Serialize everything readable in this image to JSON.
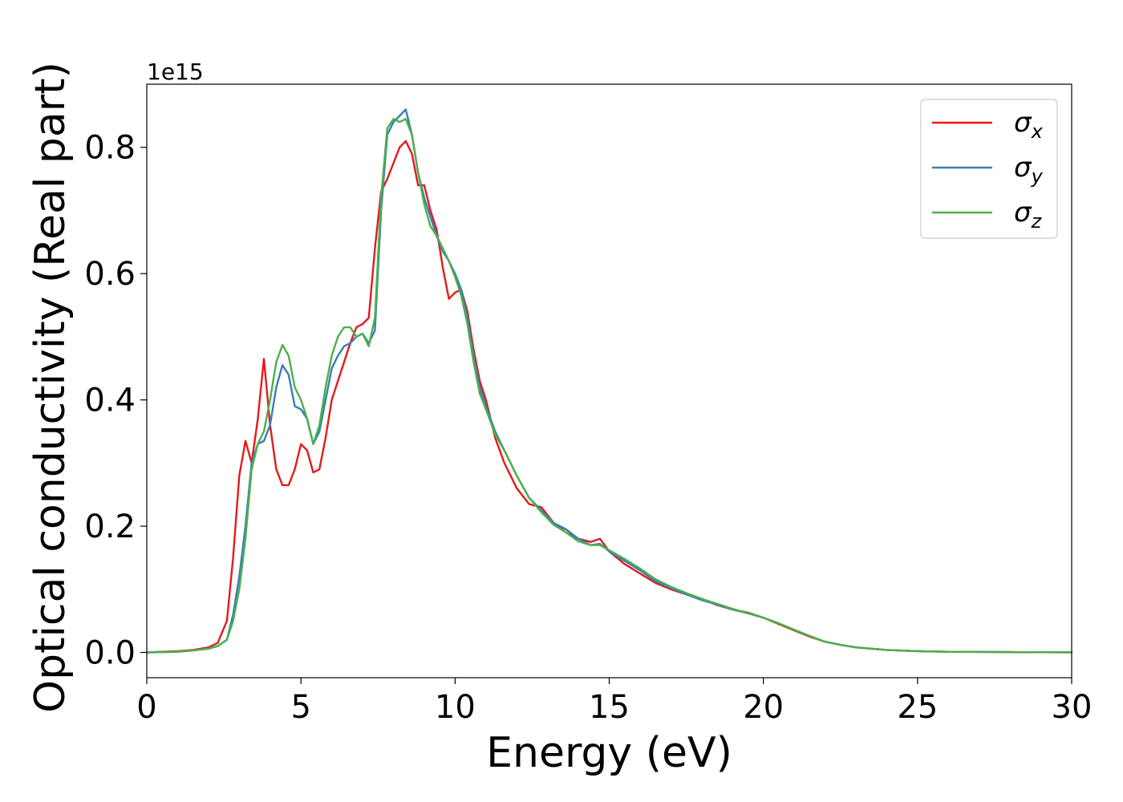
{
  "chart_data": {
    "type": "line",
    "xlabel": "Energy (eV)",
    "ylabel": "Optical conductivity (Real part)",
    "y_offset_label": "1e15",
    "xlim": [
      0,
      30
    ],
    "ylim": [
      -0.04,
      0.9
    ],
    "x_ticks": [
      0,
      5,
      10,
      15,
      20,
      25,
      30
    ],
    "x_tick_labels": [
      "0",
      "5",
      "10",
      "15",
      "20",
      "25",
      "30"
    ],
    "y_ticks": [
      0.0,
      0.2,
      0.4,
      0.6,
      0.8
    ],
    "y_tick_labels": [
      "0.0",
      "0.2",
      "0.4",
      "0.6",
      "0.8"
    ],
    "grid": false,
    "legend_position": "top-right",
    "series": [
      {
        "name": "σx",
        "symbol": "σ",
        "subscript": "x",
        "color": "#e41a1c",
        "x": [
          0,
          1,
          1.5,
          2,
          2.3,
          2.6,
          2.8,
          3.0,
          3.2,
          3.4,
          3.6,
          3.8,
          4.0,
          4.2,
          4.4,
          4.6,
          4.8,
          5.0,
          5.2,
          5.4,
          5.6,
          5.8,
          6.0,
          6.2,
          6.4,
          6.6,
          6.8,
          7.0,
          7.2,
          7.4,
          7.6,
          7.8,
          8.0,
          8.2,
          8.4,
          8.6,
          8.8,
          9.0,
          9.2,
          9.4,
          9.6,
          9.8,
          10.0,
          10.2,
          10.4,
          10.6,
          10.8,
          11.0,
          11.3,
          11.6,
          12.0,
          12.4,
          12.8,
          13.2,
          13.6,
          14.0,
          14.4,
          14.7,
          15.0,
          15.5,
          16.0,
          16.5,
          17.0,
          17.5,
          18.0,
          18.5,
          19.0,
          19.5,
          20.0,
          20.5,
          21.0,
          21.5,
          22.0,
          22.5,
          23.0,
          24.0,
          25.0,
          26.0,
          28.0,
          30.0
        ],
        "y": [
          0.0,
          0.002,
          0.004,
          0.008,
          0.015,
          0.05,
          0.15,
          0.28,
          0.335,
          0.3,
          0.37,
          0.465,
          0.36,
          0.29,
          0.265,
          0.265,
          0.29,
          0.33,
          0.32,
          0.285,
          0.29,
          0.34,
          0.4,
          0.43,
          0.46,
          0.49,
          0.515,
          0.52,
          0.53,
          0.64,
          0.73,
          0.75,
          0.775,
          0.8,
          0.81,
          0.79,
          0.74,
          0.74,
          0.7,
          0.67,
          0.61,
          0.56,
          0.57,
          0.575,
          0.54,
          0.48,
          0.43,
          0.4,
          0.34,
          0.3,
          0.26,
          0.235,
          0.23,
          0.205,
          0.19,
          0.18,
          0.175,
          0.18,
          0.16,
          0.14,
          0.125,
          0.11,
          0.1,
          0.092,
          0.085,
          0.075,
          0.068,
          0.063,
          0.055,
          0.045,
          0.035,
          0.025,
          0.017,
          0.012,
          0.008,
          0.004,
          0.002,
          0.001,
          0.0005,
          0.0002
        ]
      },
      {
        "name": "σy",
        "symbol": "σ",
        "subscript": "y",
        "color": "#377eb8",
        "x": [
          0,
          1,
          1.5,
          2,
          2.3,
          2.6,
          2.8,
          3.0,
          3.2,
          3.4,
          3.6,
          3.8,
          4.0,
          4.2,
          4.4,
          4.6,
          4.8,
          5.0,
          5.2,
          5.4,
          5.6,
          5.8,
          6.0,
          6.2,
          6.4,
          6.6,
          6.8,
          7.0,
          7.2,
          7.4,
          7.6,
          7.8,
          8.0,
          8.2,
          8.4,
          8.6,
          8.8,
          9.0,
          9.2,
          9.4,
          9.6,
          9.8,
          10.0,
          10.2,
          10.4,
          10.6,
          10.8,
          11.0,
          11.3,
          11.6,
          12.0,
          12.4,
          12.8,
          13.2,
          13.6,
          14.0,
          14.4,
          14.7,
          15.0,
          15.5,
          16.0,
          16.5,
          17.0,
          17.5,
          18.0,
          18.5,
          19.0,
          19.5,
          20.0,
          20.5,
          21.0,
          21.5,
          22.0,
          22.5,
          23.0,
          24.0,
          25.0,
          26.0,
          28.0,
          30.0
        ],
        "y": [
          0.0,
          0.001,
          0.003,
          0.006,
          0.01,
          0.02,
          0.06,
          0.12,
          0.2,
          0.3,
          0.33,
          0.335,
          0.36,
          0.42,
          0.455,
          0.44,
          0.39,
          0.385,
          0.37,
          0.33,
          0.35,
          0.4,
          0.45,
          0.47,
          0.485,
          0.49,
          0.5,
          0.505,
          0.49,
          0.51,
          0.7,
          0.82,
          0.84,
          0.85,
          0.86,
          0.82,
          0.76,
          0.72,
          0.69,
          0.66,
          0.635,
          0.62,
          0.6,
          0.575,
          0.53,
          0.47,
          0.42,
          0.39,
          0.35,
          0.32,
          0.28,
          0.245,
          0.225,
          0.205,
          0.195,
          0.18,
          0.17,
          0.172,
          0.16,
          0.145,
          0.13,
          0.113,
          0.102,
          0.092,
          0.083,
          0.076,
          0.068,
          0.062,
          0.055,
          0.046,
          0.036,
          0.026,
          0.017,
          0.012,
          0.008,
          0.004,
          0.002,
          0.001,
          0.0005,
          0.0002
        ]
      },
      {
        "name": "σz",
        "symbol": "σ",
        "subscript": "z",
        "color": "#4daf4a",
        "x": [
          0,
          1,
          1.5,
          2,
          2.3,
          2.6,
          2.8,
          3.0,
          3.2,
          3.4,
          3.6,
          3.8,
          4.0,
          4.2,
          4.4,
          4.6,
          4.8,
          5.0,
          5.2,
          5.4,
          5.6,
          5.8,
          6.0,
          6.2,
          6.4,
          6.6,
          6.8,
          7.0,
          7.2,
          7.4,
          7.6,
          7.8,
          8.0,
          8.2,
          8.4,
          8.6,
          8.8,
          9.0,
          9.2,
          9.4,
          9.6,
          9.8,
          10.0,
          10.2,
          10.4,
          10.6,
          10.8,
          11.0,
          11.3,
          11.6,
          12.0,
          12.4,
          12.8,
          13.2,
          13.6,
          14.0,
          14.4,
          14.7,
          15.0,
          15.5,
          16.0,
          16.5,
          17.0,
          17.5,
          18.0,
          18.5,
          19.0,
          19.5,
          20.0,
          20.5,
          21.0,
          21.5,
          22.0,
          22.5,
          23.0,
          24.0,
          25.0,
          26.0,
          28.0,
          30.0
        ],
        "y": [
          0.0,
          0.001,
          0.003,
          0.006,
          0.01,
          0.02,
          0.05,
          0.1,
          0.18,
          0.29,
          0.33,
          0.35,
          0.4,
          0.46,
          0.487,
          0.47,
          0.42,
          0.4,
          0.37,
          0.33,
          0.36,
          0.42,
          0.47,
          0.5,
          0.515,
          0.515,
          0.5,
          0.505,
          0.485,
          0.53,
          0.72,
          0.83,
          0.845,
          0.84,
          0.845,
          0.82,
          0.76,
          0.71,
          0.675,
          0.66,
          0.64,
          0.62,
          0.595,
          0.565,
          0.52,
          0.46,
          0.41,
          0.385,
          0.345,
          0.32,
          0.28,
          0.245,
          0.222,
          0.202,
          0.19,
          0.176,
          0.17,
          0.17,
          0.162,
          0.148,
          0.133,
          0.116,
          0.104,
          0.094,
          0.085,
          0.077,
          0.069,
          0.062,
          0.055,
          0.046,
          0.036,
          0.026,
          0.017,
          0.012,
          0.008,
          0.004,
          0.002,
          0.001,
          0.0005,
          0.0002
        ]
      }
    ]
  }
}
